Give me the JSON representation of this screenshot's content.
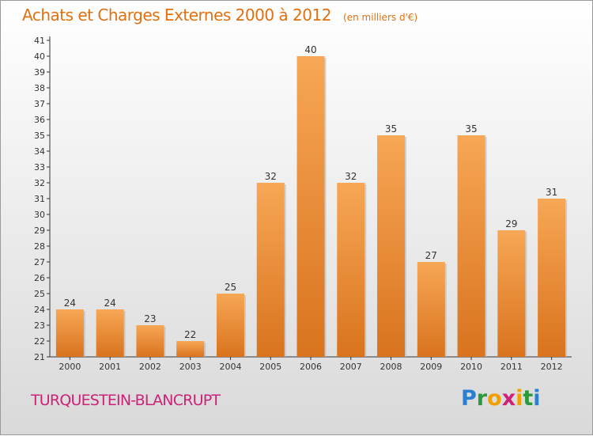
{
  "page": {
    "title": "Achats et Charges Externes 2000 à 2012",
    "subtitle": "(en milliers d'€)",
    "location": "TURQUESTEIN-BLANCRUPT",
    "logo": {
      "letters": [
        "P",
        "r",
        "o",
        "x",
        "i",
        "t",
        "i"
      ],
      "colors": [
        "#2a7fd0",
        "#2a9a3a",
        "#f0a000",
        "#cc2277",
        "#f0a000",
        "#2a9a3a",
        "#2a7fd0"
      ]
    },
    "colors": {
      "title": "#e07010",
      "bar_top": "#f7a755",
      "bar_bottom": "#d9731e",
      "location": "#cc2277"
    }
  },
  "chart_data": {
    "type": "bar",
    "categories": [
      "2000",
      "2001",
      "2002",
      "2003",
      "2004",
      "2005",
      "2006",
      "2007",
      "2008",
      "2009",
      "2010",
      "2011",
      "2012"
    ],
    "values": [
      24,
      24,
      23,
      22,
      25,
      32,
      40,
      32,
      35,
      27,
      35,
      29,
      31
    ],
    "ylim": [
      21,
      41
    ],
    "yticks": [
      21,
      22,
      23,
      24,
      25,
      26,
      27,
      28,
      29,
      30,
      31,
      32,
      33,
      34,
      35,
      36,
      37,
      38,
      39,
      40,
      41
    ],
    "data_labels": true,
    "grid": false
  }
}
